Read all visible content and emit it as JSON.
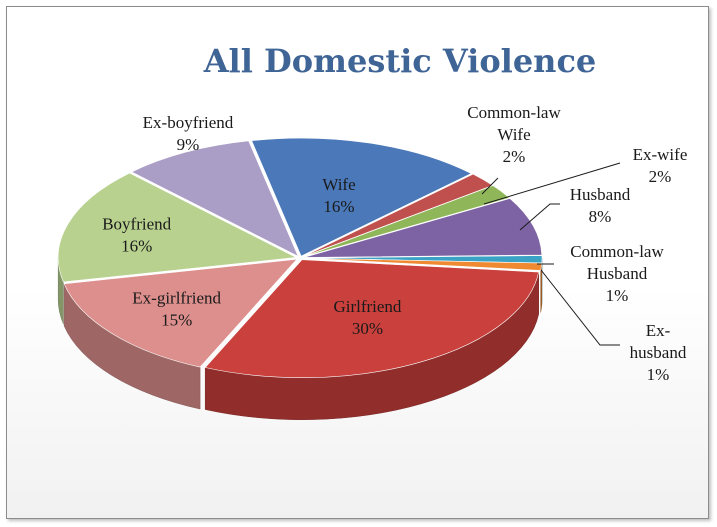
{
  "chart_data": {
    "type": "pie",
    "style": "3d-exploded-tilted",
    "title": "All Domestic Violence",
    "slices": [
      {
        "label": "Wife",
        "value": 16,
        "display": "16%",
        "color": "#4a78b8"
      },
      {
        "label": "Common-law Wife",
        "value": 2,
        "display": "2%",
        "color": "#c0504d"
      },
      {
        "label": "Ex-wife",
        "value": 2,
        "display": "2%",
        "color": "#8fb75a"
      },
      {
        "label": "Husband",
        "value": 8,
        "display": "8%",
        "color": "#7d63a3"
      },
      {
        "label": "Common-law Husband",
        "value": 1,
        "display": "1%",
        "color": "#3aa2c4"
      },
      {
        "label": "Ex-husband",
        "value": 1,
        "display": "1%",
        "color": "#ef8a33"
      },
      {
        "label": "Girlfriend",
        "value": 30,
        "display": "30%",
        "color": "#c9403c"
      },
      {
        "label": "Ex-girlfriend",
        "value": 15,
        "display": "15%",
        "color": "#dc8f8d"
      },
      {
        "label": "Boyfriend",
        "value": 16,
        "display": "16%",
        "color": "#b8d18f"
      },
      {
        "label": "Ex-boyfriend",
        "value": 9,
        "display": "9%",
        "color": "#ab9ec6"
      }
    ]
  }
}
